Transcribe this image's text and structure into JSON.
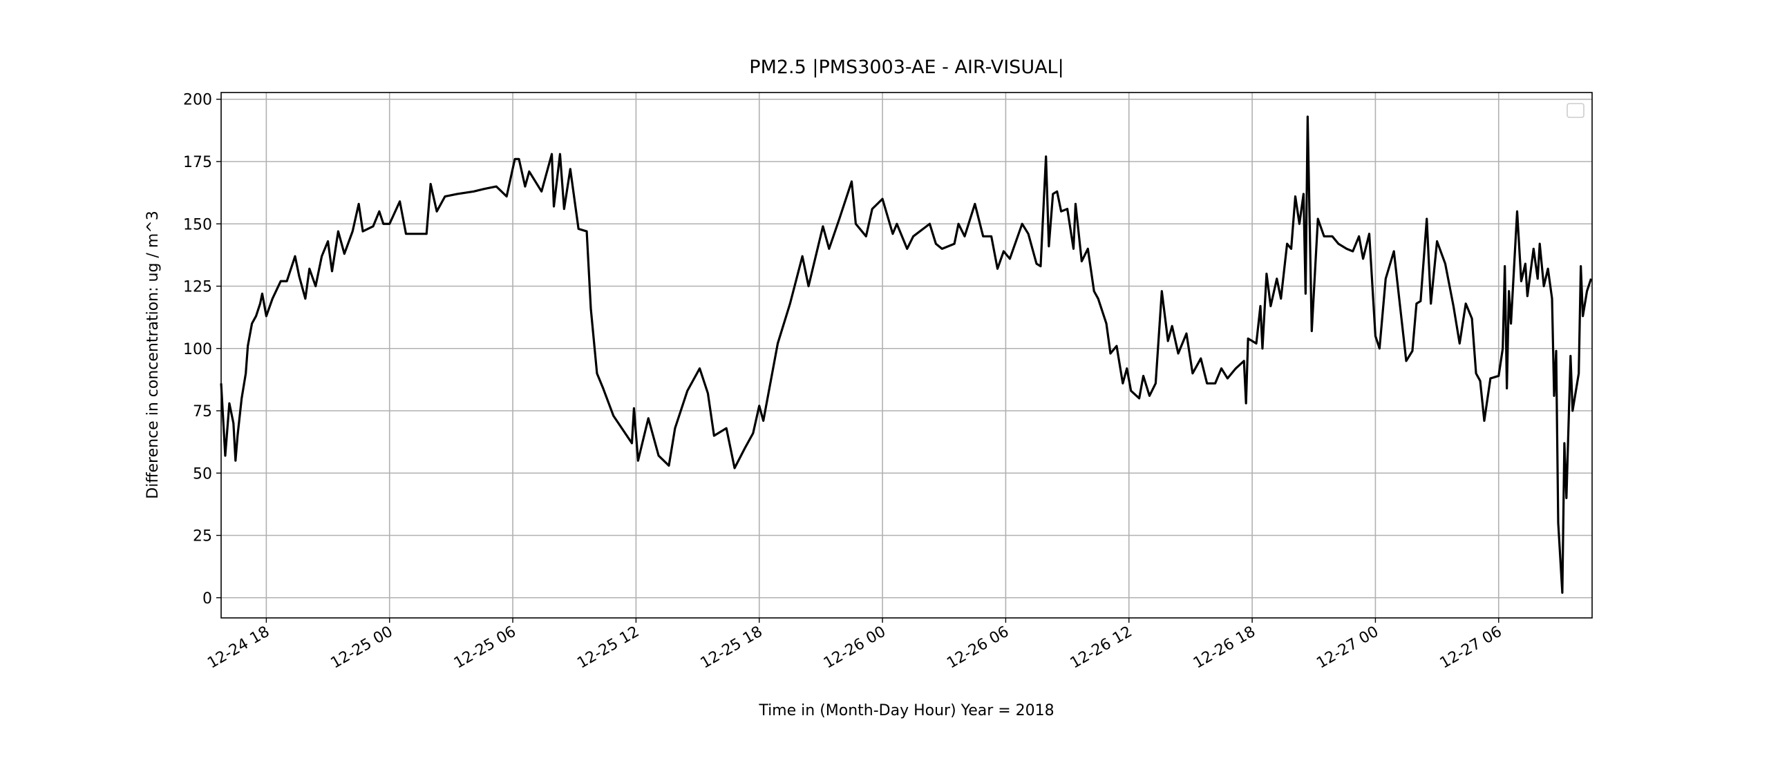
{
  "chart_data": {
    "type": "line",
    "title": "PM2.5 |PMS3003-AE - AIR-VISUAL|",
    "xlabel": "Time in (Month-Day Hour)     Year = 2018",
    "ylabel": "Difference in concentration: ug / m^3",
    "color": "#000000",
    "grid": true,
    "legend": "upper right",
    "xlim": [
      15.8,
      82.55
    ],
    "ylim": [
      -8.1,
      202.7
    ],
    "yticks": [
      0,
      25,
      50,
      75,
      100,
      125,
      150,
      175,
      200
    ],
    "xticks": [
      {
        "value": 18,
        "label": "12-24 18"
      },
      {
        "value": 24,
        "label": "12-25 00"
      },
      {
        "value": 30,
        "label": "12-25 06"
      },
      {
        "value": 36,
        "label": "12-25 12"
      },
      {
        "value": 42,
        "label": "12-25 18"
      },
      {
        "value": 48,
        "label": "12-26 00"
      },
      {
        "value": 54,
        "label": "12-26 06"
      },
      {
        "value": 60,
        "label": "12-26 12"
      },
      {
        "value": 66,
        "label": "12-26 18"
      },
      {
        "value": 72,
        "label": "12-27 00"
      },
      {
        "value": 78,
        "label": "12-27 06"
      }
    ],
    "x": [
      15.8,
      16.0,
      16.2,
      16.4,
      16.5,
      16.6,
      16.8,
      17.0,
      17.1,
      17.3,
      17.5,
      17.7,
      17.8,
      18.0,
      18.3,
      18.7,
      19.0,
      19.4,
      19.6,
      19.9,
      20.1,
      20.4,
      20.7,
      21.0,
      21.2,
      21.5,
      21.8,
      22.2,
      22.5,
      22.7,
      23.2,
      23.5,
      23.7,
      24.0,
      24.5,
      24.8,
      25.8,
      26.0,
      26.3,
      26.7,
      27.3,
      28.1,
      28.6,
      29.2,
      29.7,
      30.1,
      30.3,
      30.6,
      30.8,
      31.4,
      31.9,
      32.0,
      32.3,
      32.5,
      32.8,
      33.0,
      33.2,
      33.6,
      33.8,
      34.1,
      34.4,
      34.9,
      35.8,
      35.9,
      36.1,
      36.6,
      37.1,
      37.6,
      37.9,
      38.5,
      39.1,
      39.5,
      39.8,
      40.4,
      40.8,
      41.3,
      41.7,
      42.0,
      42.2,
      42.9,
      43.5,
      44.1,
      44.4,
      45.1,
      45.4,
      45.9,
      46.5,
      46.7,
      47.2,
      47.5,
      48.0,
      48.5,
      48.7,
      49.2,
      49.5,
      50.3,
      50.6,
      50.9,
      51.5,
      51.7,
      52.0,
      52.5,
      52.9,
      53.3,
      53.6,
      53.9,
      54.2,
      54.8,
      55.1,
      55.5,
      55.7,
      55.96,
      56.1,
      56.3,
      56.5,
      56.7,
      57.0,
      57.3,
      57.4,
      57.7,
      58.0,
      58.3,
      58.5,
      58.9,
      59.1,
      59.4,
      59.7,
      59.9,
      60.1,
      60.5,
      60.7,
      61.0,
      61.3,
      61.6,
      61.9,
      62.1,
      62.4,
      62.8,
      63.1,
      63.5,
      63.8,
      64.2,
      64.5,
      64.8,
      65.2,
      65.6,
      65.7,
      65.8,
      66.2,
      66.4,
      66.5,
      66.7,
      66.9,
      67.2,
      67.4,
      67.7,
      67.9,
      68.1,
      68.3,
      68.5,
      68.6,
      68.7,
      68.9,
      69.2,
      69.5,
      69.9,
      70.2,
      70.6,
      70.9,
      71.2,
      71.4,
      71.7,
      72.0,
      72.2,
      72.5,
      72.9,
      73.2,
      73.5,
      73.8,
      74.0,
      74.2,
      74.5,
      74.7,
      75.0,
      75.4,
      75.8,
      76.1,
      76.4,
      76.7,
      76.9,
      77.1,
      77.3,
      77.6,
      78.0,
      78.2,
      78.3,
      78.4,
      78.5,
      78.6,
      78.9,
      79.1,
      79.3,
      79.4,
      79.7,
      79.9,
      80.0,
      80.2,
      80.4,
      80.6,
      80.7,
      80.8,
      80.9,
      81.1,
      81.2,
      81.3,
      81.5,
      81.6,
      81.9,
      82.0,
      82.1,
      82.3,
      82.5
    ],
    "values": [
      86,
      57,
      78,
      70,
      55,
      65,
      80,
      90,
      101,
      110,
      113,
      118,
      122,
      113,
      120,
      127,
      127,
      137,
      129,
      120,
      132,
      125,
      137,
      143,
      131,
      147,
      138,
      147,
      158,
      147,
      149,
      155,
      150,
      150,
      159,
      146,
      146,
      166,
      155,
      161,
      162,
      163,
      164,
      165,
      161,
      176,
      176,
      165,
      171,
      163,
      178,
      157,
      178,
      156,
      172,
      160,
      148,
      147,
      116,
      90,
      84,
      73,
      62,
      76,
      55,
      72,
      57,
      53,
      68,
      83,
      92,
      82,
      65,
      68,
      52,
      60,
      66,
      77,
      71,
      102,
      118,
      137,
      125,
      149,
      140,
      152,
      167,
      150,
      145,
      156,
      160,
      146,
      150,
      140,
      145,
      150,
      142,
      140,
      142,
      150,
      145,
      158,
      145,
      145,
      132,
      139,
      136,
      150,
      146,
      134,
      133,
      177,
      141,
      162,
      163,
      155,
      156,
      140,
      158,
      135,
      140,
      123,
      120,
      110,
      98,
      101,
      86,
      92,
      83,
      80,
      89,
      81,
      86,
      123,
      103,
      109,
      98,
      106,
      90,
      96,
      86,
      86,
      92,
      88,
      92,
      95,
      78,
      104,
      102,
      117,
      100,
      130,
      117,
      128,
      120,
      142,
      140,
      161,
      150,
      162,
      122,
      193,
      107,
      152,
      145,
      145,
      142,
      140,
      139,
      145,
      136,
      146,
      105,
      100,
      128,
      139,
      117,
      95,
      99,
      118,
      119,
      152,
      118,
      143,
      134,
      117,
      102,
      118,
      112,
      90,
      87,
      71,
      88,
      89,
      100,
      133,
      84,
      123,
      110,
      155,
      127,
      134,
      121,
      140,
      128,
      142,
      125,
      132,
      120,
      81,
      99,
      30,
      2,
      62,
      40,
      97,
      75,
      90,
      133,
      113,
      123,
      128
    ]
  }
}
